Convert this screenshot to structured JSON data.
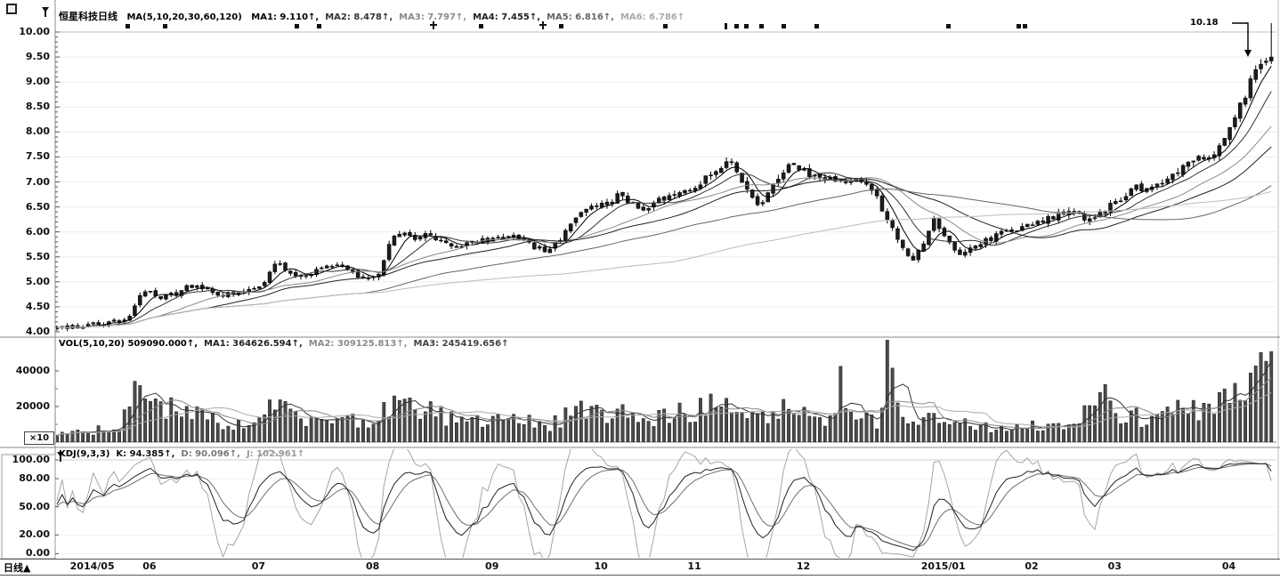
{
  "main_pane": {
    "title": "恒星科技日线",
    "ma_settings": "MA(5,10,20,30,60,120)",
    "segments": [
      {
        "text": "MA1: 9.110↑,",
        "color": "#000000"
      },
      {
        "text": "MA2: 8.478↑,",
        "color": "#333333"
      },
      {
        "text": "MA3: 7.797↑,",
        "color": "#8a8a8a"
      },
      {
        "text": "MA4: 7.455↑,",
        "color": "#222222"
      },
      {
        "text": "MA5: 6.816↑,",
        "color": "#666666"
      },
      {
        "text": "MA6: 6.786↑",
        "color": "#aaaaaa"
      }
    ],
    "annotation": "10.18",
    "y_ticks": [
      {
        "label": "10.00",
        "value": 10.0
      },
      {
        "label": "9.50",
        "value": 9.5
      },
      {
        "label": "9.00",
        "value": 9.0
      },
      {
        "label": "8.50",
        "value": 8.5
      },
      {
        "label": "8.00",
        "value": 8.0
      },
      {
        "label": "7.50",
        "value": 7.5
      },
      {
        "label": "7.00",
        "value": 7.0
      },
      {
        "label": "6.50",
        "value": 6.5
      },
      {
        "label": "6.00",
        "value": 6.0
      },
      {
        "label": "5.50",
        "value": 5.5
      },
      {
        "label": "5.00",
        "value": 5.0
      },
      {
        "label": "4.50",
        "value": 4.5
      },
      {
        "label": "4.00",
        "value": 4.0
      }
    ],
    "event_markers": [
      {
        "x": 143,
        "type": "square"
      },
      {
        "x": 185,
        "type": "square"
      },
      {
        "x": 333,
        "type": "square"
      },
      {
        "x": 358,
        "type": "square"
      },
      {
        "x": 487,
        "type": "plus"
      },
      {
        "x": 540,
        "type": "square"
      },
      {
        "x": 610,
        "type": "plus"
      },
      {
        "x": 630,
        "type": "square"
      },
      {
        "x": 747,
        "type": "square"
      },
      {
        "x": 815,
        "type": "bar"
      },
      {
        "x": 827,
        "type": "square"
      },
      {
        "x": 838,
        "type": "square"
      },
      {
        "x": 855,
        "type": "square"
      },
      {
        "x": 880,
        "type": "square"
      },
      {
        "x": 917,
        "type": "square"
      },
      {
        "x": 1065,
        "type": "square"
      },
      {
        "x": 1144,
        "type": "square"
      },
      {
        "x": 1151,
        "type": "square"
      }
    ]
  },
  "volume_pane": {
    "segments": [
      {
        "text": "VOL(5,10,20) 509090.000↑,",
        "color": "#000000"
      },
      {
        "text": "MA1: 364626.594↑,",
        "color": "#222222"
      },
      {
        "text": "MA2: 309125.813↑,",
        "color": "#8a8a8a"
      },
      {
        "text": "MA3: 245419.656↑",
        "color": "#444444"
      }
    ],
    "y_ticks": [
      {
        "label": "40000",
        "value": 40000
      },
      {
        "label": "20000",
        "value": 20000
      }
    ],
    "unit": "×10"
  },
  "kdj_pane": {
    "segments": [
      {
        "text": "KDJ(9,3,3)",
        "color": "#000000"
      },
      {
        "text": "K: 94.385↑,",
        "color": "#111111"
      },
      {
        "text": "D: 90.096↑,",
        "color": "#777777"
      },
      {
        "text": "J: 102.961↑",
        "color": "#999999"
      }
    ],
    "y_ticks": [
      {
        "label": "100.00",
        "value": 100
      },
      {
        "label": "80.00",
        "value": 80
      },
      {
        "label": "50.00",
        "value": 50
      },
      {
        "label": "20.00",
        "value": 20
      },
      {
        "label": "0.00",
        "value": 0
      }
    ]
  },
  "time_axis": {
    "period_label": "日线",
    "arrow": "▲",
    "months": [
      {
        "label": "2014/05",
        "idx": 2
      },
      {
        "label": "06",
        "idx": 16
      },
      {
        "label": "07",
        "idx": 37
      },
      {
        "label": "08",
        "idx": 59
      },
      {
        "label": "09",
        "idx": 82
      },
      {
        "label": "10",
        "idx": 103
      },
      {
        "label": "11",
        "idx": 121
      },
      {
        "label": "12",
        "idx": 142
      },
      {
        "label": "2015/01",
        "idx": 166
      },
      {
        "label": "02",
        "idx": 186
      },
      {
        "label": "03",
        "idx": 202
      },
      {
        "label": "04",
        "idx": 224
      }
    ]
  },
  "chart_data": [
    {
      "type": "candlestick",
      "title": "恒星科技日线",
      "n_points": 235,
      "ylim": [
        4.0,
        10.0
      ],
      "x_range": [
        "2014/05",
        "2015/04"
      ],
      "close_keypoints": [
        [
          0,
          4.08
        ],
        [
          4,
          4.12
        ],
        [
          8,
          4.15
        ],
        [
          12,
          4.22
        ],
        [
          14,
          4.35
        ],
        [
          16,
          4.72
        ],
        [
          18,
          4.85
        ],
        [
          20,
          4.68
        ],
        [
          23,
          4.78
        ],
        [
          26,
          4.92
        ],
        [
          29,
          4.86
        ],
        [
          32,
          4.72
        ],
        [
          35,
          4.78
        ],
        [
          38,
          4.84
        ],
        [
          40,
          4.95
        ],
        [
          42,
          5.35
        ],
        [
          44,
          5.28
        ],
        [
          47,
          5.12
        ],
        [
          50,
          5.25
        ],
        [
          53,
          5.34
        ],
        [
          56,
          5.22
        ],
        [
          59,
          5.05
        ],
        [
          62,
          5.18
        ],
        [
          65,
          5.95
        ],
        [
          67,
          6.02
        ],
        [
          69,
          5.82
        ],
        [
          71,
          5.98
        ],
        [
          74,
          5.86
        ],
        [
          77,
          5.68
        ],
        [
          80,
          5.78
        ],
        [
          84,
          5.86
        ],
        [
          88,
          5.94
        ],
        [
          91,
          5.78
        ],
        [
          94,
          5.58
        ],
        [
          97,
          5.82
        ],
        [
          100,
          6.32
        ],
        [
          103,
          6.48
        ],
        [
          106,
          6.56
        ],
        [
          108,
          6.72
        ],
        [
          110,
          6.58
        ],
        [
          113,
          6.48
        ],
        [
          116,
          6.62
        ],
        [
          119,
          6.78
        ],
        [
          122,
          6.88
        ],
        [
          125,
          7.05
        ],
        [
          128,
          7.28
        ],
        [
          130,
          7.42
        ],
        [
          132,
          7.05
        ],
        [
          134,
          6.62
        ],
        [
          136,
          6.55
        ],
        [
          138,
          6.88
        ],
        [
          140,
          7.22
        ],
        [
          142,
          7.38
        ],
        [
          145,
          7.12
        ],
        [
          148,
          7.02
        ],
        [
          151,
          7.08
        ],
        [
          153,
          6.95
        ],
        [
          155,
          7.02
        ],
        [
          157,
          6.88
        ],
        [
          159,
          6.45
        ],
        [
          161,
          6.05
        ],
        [
          163,
          5.65
        ],
        [
          165,
          5.45
        ],
        [
          167,
          5.72
        ],
        [
          169,
          6.25
        ],
        [
          171,
          5.95
        ],
        [
          173,
          5.62
        ],
        [
          175,
          5.58
        ],
        [
          177,
          5.72
        ],
        [
          180,
          5.88
        ],
        [
          183,
          6.02
        ],
        [
          186,
          6.12
        ],
        [
          189,
          6.22
        ],
        [
          192,
          6.32
        ],
        [
          195,
          6.42
        ],
        [
          197,
          6.35
        ],
        [
          199,
          6.22
        ],
        [
          201,
          6.38
        ],
        [
          203,
          6.52
        ],
        [
          206,
          6.72
        ],
        [
          208,
          6.88
        ],
        [
          210,
          6.82
        ],
        [
          212,
          6.98
        ],
        [
          214,
          7.08
        ],
        [
          216,
          7.22
        ],
        [
          218,
          7.38
        ],
        [
          220,
          7.52
        ],
        [
          222,
          7.42
        ],
        [
          224,
          7.68
        ],
        [
          226,
          8.08
        ],
        [
          228,
          8.52
        ],
        [
          230,
          9.02
        ],
        [
          232,
          9.35
        ],
        [
          234,
          9.5
        ]
      ],
      "last_candle": {
        "high": 10.18,
        "close": 9.5
      },
      "ma_periods": [
        5,
        10,
        20,
        30,
        60,
        120
      ],
      "ma_current": [
        9.11,
        8.478,
        7.797,
        7.455,
        6.816,
        6.786
      ],
      "ma_colors": [
        "#000000",
        "#333333",
        "#8a8a8a",
        "#222222",
        "#666666",
        "#bbbbbb"
      ]
    },
    {
      "type": "bar",
      "name": "VOL",
      "ylim": [
        0,
        52000
      ],
      "unit": "×10",
      "current": 509090.0,
      "volume_keypoints": [
        [
          0,
          5000
        ],
        [
          6,
          6000
        ],
        [
          12,
          9000
        ],
        [
          14,
          26000
        ],
        [
          16,
          30000
        ],
        [
          18,
          24000
        ],
        [
          21,
          18000
        ],
        [
          24,
          21000
        ],
        [
          27,
          16000
        ],
        [
          30,
          13000
        ],
        [
          34,
          10000
        ],
        [
          38,
          12000
        ],
        [
          42,
          22000
        ],
        [
          45,
          14000
        ],
        [
          48,
          11000
        ],
        [
          52,
          13000
        ],
        [
          56,
          12000
        ],
        [
          60,
          10000
        ],
        [
          64,
          18000
        ],
        [
          66,
          26000
        ],
        [
          69,
          15000
        ],
        [
          72,
          18000
        ],
        [
          76,
          13000
        ],
        [
          80,
          12000
        ],
        [
          84,
          13000
        ],
        [
          88,
          14000
        ],
        [
          92,
          11000
        ],
        [
          95,
          9000
        ],
        [
          98,
          14000
        ],
        [
          100,
          22000
        ],
        [
          104,
          16000
        ],
        [
          108,
          18000
        ],
        [
          112,
          13000
        ],
        [
          116,
          15000
        ],
        [
          120,
          16000
        ],
        [
          124,
          19000
        ],
        [
          128,
          22000
        ],
        [
          130,
          24000
        ],
        [
          132,
          17000
        ],
        [
          134,
          15000
        ],
        [
          137,
          14000
        ],
        [
          140,
          20000
        ],
        [
          143,
          16000
        ],
        [
          146,
          13000
        ],
        [
          149,
          14000
        ],
        [
          151,
          33000
        ],
        [
          153,
          18000
        ],
        [
          156,
          14000
        ],
        [
          158,
          12000
        ],
        [
          160,
          48000
        ],
        [
          162,
          20000
        ],
        [
          164,
          15000
        ],
        [
          167,
          13000
        ],
        [
          170,
          12000
        ],
        [
          174,
          10000
        ],
        [
          178,
          9000
        ],
        [
          182,
          8000
        ],
        [
          186,
          9000
        ],
        [
          190,
          9500
        ],
        [
          194,
          10000
        ],
        [
          197,
          12000
        ],
        [
          199,
          20000
        ],
        [
          200,
          30000
        ],
        [
          202,
          24000
        ],
        [
          204,
          18000
        ],
        [
          207,
          14000
        ],
        [
          210,
          14000
        ],
        [
          213,
          15000
        ],
        [
          216,
          17000
        ],
        [
          219,
          19000
        ],
        [
          222,
          22000
        ],
        [
          225,
          26000
        ],
        [
          227,
          28000
        ],
        [
          229,
          33000
        ],
        [
          231,
          42000
        ],
        [
          234,
          51000
        ]
      ],
      "ma_periods": [
        5,
        10,
        20
      ],
      "ma_current": [
        364626.594,
        309125.813,
        245419.656
      ],
      "ma_colors": [
        "#333333",
        "#888888",
        "#aaaaaa"
      ]
    },
    {
      "type": "line",
      "name": "KDJ",
      "params": [
        9,
        3,
        3
      ],
      "ylim": [
        0,
        100
      ],
      "current": {
        "K": 94.385,
        "D": 90.096,
        "J": 102.961
      },
      "line_colors": {
        "K": "#222222",
        "D": "#6e6e6e",
        "J": "#a5a5a5"
      }
    }
  ]
}
